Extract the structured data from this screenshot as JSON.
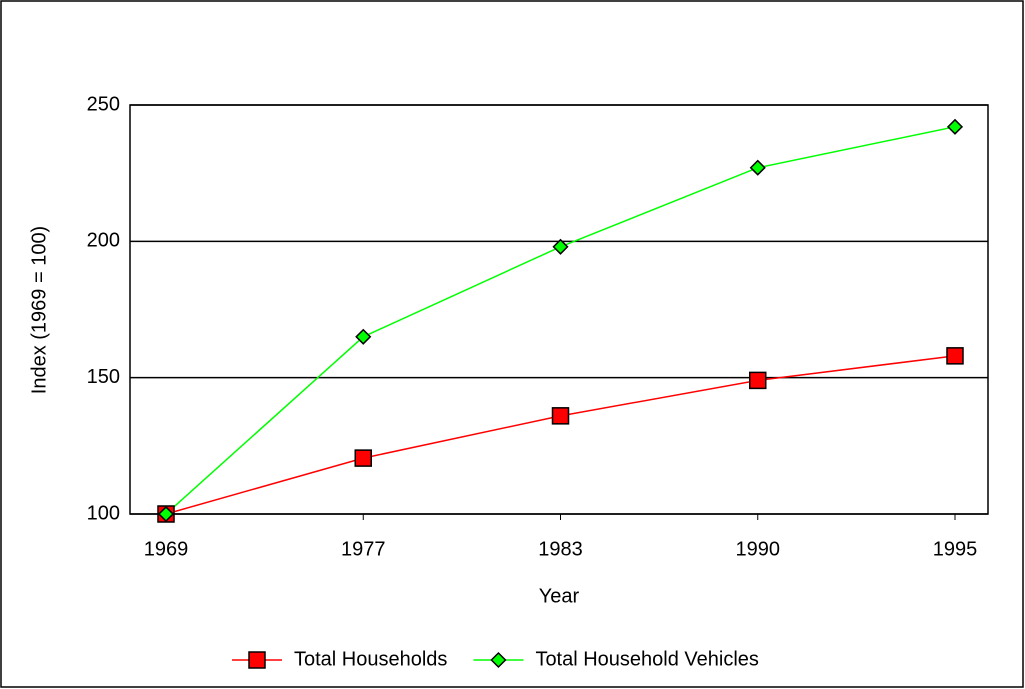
{
  "chart_data": {
    "type": "line",
    "x_label": "Year",
    "y_label": "Index (1969 = 100)",
    "categories": [
      "1969",
      "1977",
      "1983",
      "1990",
      "1995"
    ],
    "series": [
      {
        "name": "Total Households",
        "color": "#ff0000",
        "marker": "square",
        "values": [
          100,
          120.5,
          136,
          149,
          158
        ]
      },
      {
        "name": "Total Household Vehicles",
        "color": "#00ff00",
        "marker": "diamond",
        "values": [
          100,
          165,
          198,
          227,
          242
        ]
      }
    ],
    "ylim": [
      100,
      250
    ],
    "yticks": [
      100,
      150,
      200,
      250
    ],
    "grid": true,
    "legend": "bottom"
  }
}
